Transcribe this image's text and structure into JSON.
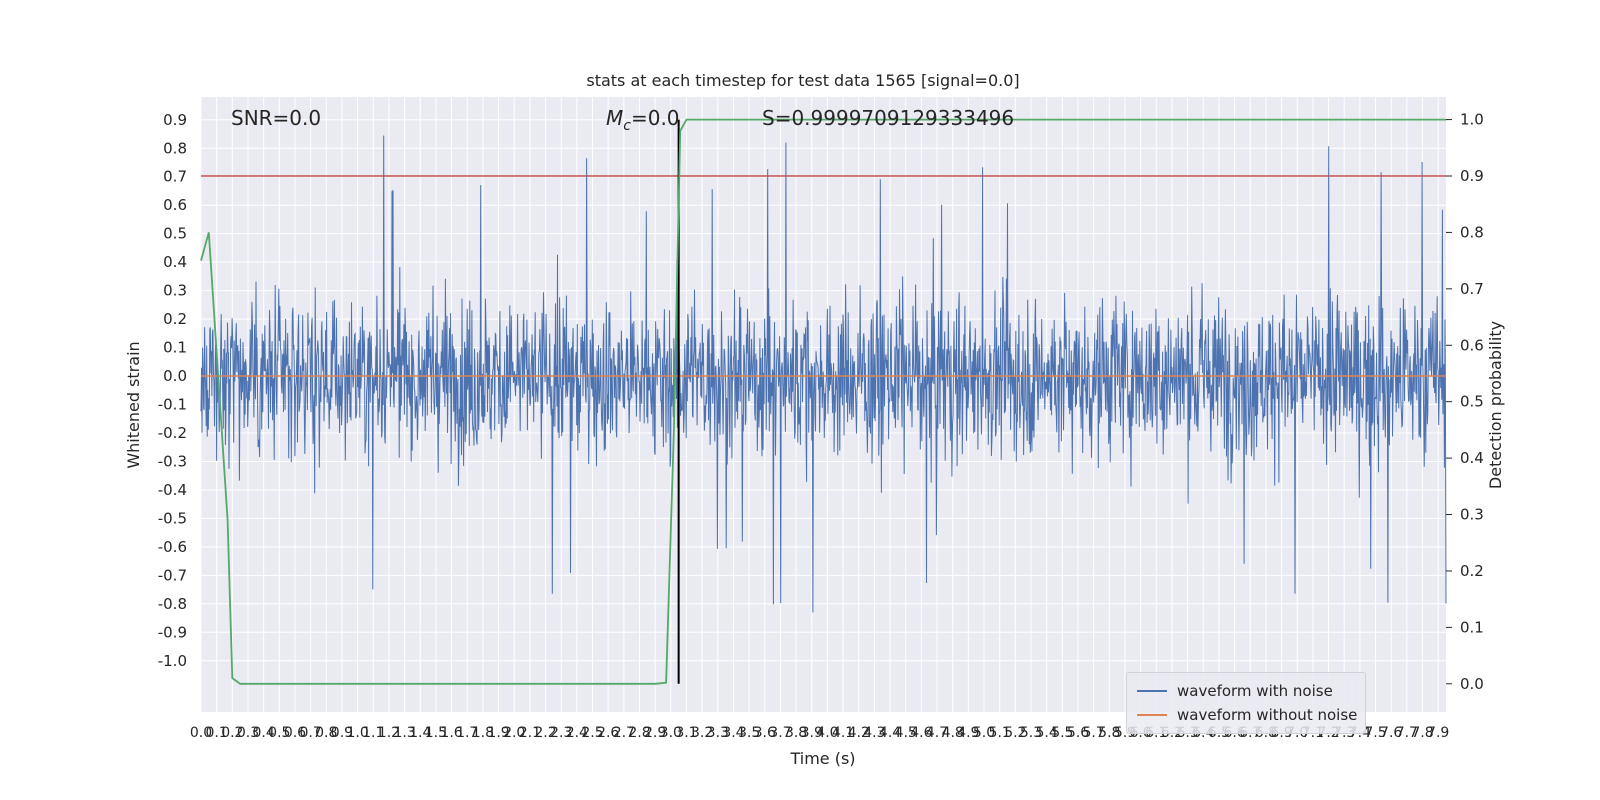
{
  "chart_data": {
    "type": "line",
    "title": "stats at each timestep for test data 1565 [signal=0.0]",
    "xlabel": "Time (s)",
    "ylabel": "Whitened strain",
    "y2label": "Detection probability",
    "xlim": [
      0.0,
      7.95
    ],
    "ylim": [
      -1.18,
      0.98
    ],
    "y2lim": [
      -0.05,
      1.04
    ],
    "y_ticks": [
      "0.9",
      "0.8",
      "0.7",
      "0.6",
      "0.5",
      "0.4",
      "0.3",
      "0.2",
      "0.1",
      "0.0",
      "-0.1",
      "-0.2",
      "-0.3",
      "-0.4",
      "-0.5",
      "-0.6",
      "-0.7",
      "-0.8",
      "-0.9",
      "-1.0"
    ],
    "y2_ticks": [
      "1.0",
      "0.9",
      "0.8",
      "0.7",
      "0.6",
      "0.5",
      "0.4",
      "0.3",
      "0.2",
      "0.1",
      "0.0"
    ],
    "x_ticks": [
      "0.0",
      "0.1",
      "0.2",
      "0.3",
      "0.4",
      "0.5",
      "0.6",
      "0.7",
      "0.8",
      "0.9",
      "1.0",
      "1.1",
      "1.2",
      "1.3",
      "1.4",
      "1.5",
      "1.6",
      "1.7",
      "1.8",
      "1.9",
      "2.0",
      "2.1",
      "2.2",
      "2.3",
      "2.4",
      "2.5",
      "2.6",
      "2.7",
      "2.8",
      "2.9",
      "3.0",
      "3.1",
      "3.2",
      "3.3",
      "3.4",
      "3.5",
      "3.6",
      "3.7",
      "3.8",
      "3.9",
      "4.0",
      "4.1",
      "4.2",
      "4.3",
      "4.4",
      "4.5",
      "4.6",
      "4.7",
      "4.8",
      "4.9",
      "5.0",
      "5.1",
      "5.2",
      "5.3",
      "5.4",
      "5.5",
      "5.6",
      "5.7",
      "5.8",
      "5.9",
      "6.0",
      "6.1",
      "6.2",
      "6.3",
      "6.4",
      "6.5",
      "6.6",
      "6.7",
      "6.8",
      "6.9",
      "7.0",
      "7.1",
      "7.2",
      "7.3",
      "7.4",
      "7.5",
      "7.6",
      "7.7",
      "7.8",
      "7.9"
    ],
    "grid": true,
    "legend_position": "bottom-right",
    "annotations": {
      "snr": "SNR=0.0",
      "mc_symbol": "M",
      "mc_sub": "c",
      "mc_value": "=0.0",
      "s": "S=0.9999709129333496"
    },
    "series": [
      {
        "name": "waveform with noise",
        "color": "#4c72b0",
        "kind": "noise",
        "envelope": [
          -0.6,
          0.6
        ],
        "peak_max": 0.86,
        "peak_min": -1.0
      },
      {
        "name": "waveform without noise",
        "color": "#dd8452",
        "kind": "flat",
        "value": 0.0
      }
    ],
    "detection_probability": {
      "color": "#55a868",
      "x": [
        0.0,
        0.05,
        0.17,
        0.2,
        0.25,
        0.5,
        1.2,
        2.0,
        2.9,
        2.97,
        3.02,
        3.06,
        3.1,
        7.95
      ],
      "y": [
        0.75,
        0.8,
        0.29,
        0.01,
        0.0,
        0.0,
        0.0,
        0.0,
        0.0,
        0.002,
        0.45,
        0.98,
        1.0,
        1.0
      ]
    },
    "threshold_line": {
      "color": "#c44e52",
      "value2": 0.9
    },
    "marker_line": {
      "color": "#000000",
      "x": 3.05,
      "y2_range": [
        0.0,
        1.0
      ]
    }
  }
}
